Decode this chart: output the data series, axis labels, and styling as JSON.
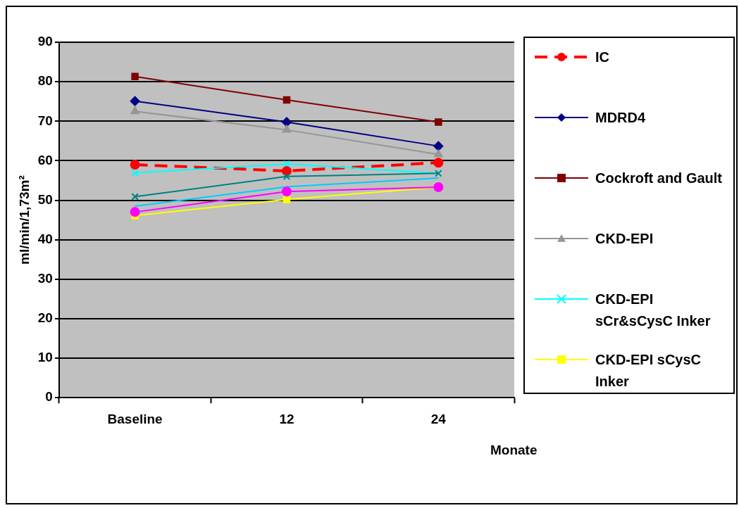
{
  "chart_data": {
    "type": "line",
    "ylabel": "ml/min/1,73m²",
    "xlabel": "Monate",
    "categories": [
      "Baseline",
      "12",
      "24"
    ],
    "ylim": [
      0,
      90
    ],
    "yticks": [
      0,
      10,
      20,
      30,
      40,
      50,
      60,
      70,
      80,
      90
    ],
    "grid": "y",
    "legend": "right",
    "series": [
      {
        "name": "IC",
        "color": "#ff0000",
        "marker": "circle",
        "line_style": "dashed",
        "values": [
          59.0,
          57.4,
          59.5
        ]
      },
      {
        "name": "MDRD4",
        "color": "#000080",
        "marker": "diamond",
        "values": [
          75.1,
          69.8,
          63.7
        ]
      },
      {
        "name": "Cockroft and Gault",
        "color": "#800000",
        "marker": "square",
        "values": [
          81.3,
          75.4,
          69.8
        ]
      },
      {
        "name": "CKD-EPI",
        "color": "#969696",
        "marker": "triangle",
        "values": [
          72.5,
          67.8,
          61.6
        ]
      },
      {
        "name": "CKD-EPI sCr&sCysC Inker",
        "color": "#00ffff",
        "marker": "cross",
        "values": [
          56.9,
          59.2,
          56.8
        ]
      },
      {
        "name": "CKD-EPI sCysC Inker",
        "color": "#ffff00",
        "marker": "square",
        "values": [
          46.1,
          50.2,
          53.3
        ]
      },
      {
        "color": "#008080",
        "marker": "cross",
        "values": [
          50.9,
          56.0,
          56.8
        ]
      },
      {
        "color": "#00ccff",
        "marker": "none",
        "values": [
          48.5,
          53.4,
          55.6
        ]
      },
      {
        "color": "#ff00ff",
        "marker": "circle",
        "values": [
          47.0,
          52.2,
          53.3
        ]
      }
    ]
  }
}
